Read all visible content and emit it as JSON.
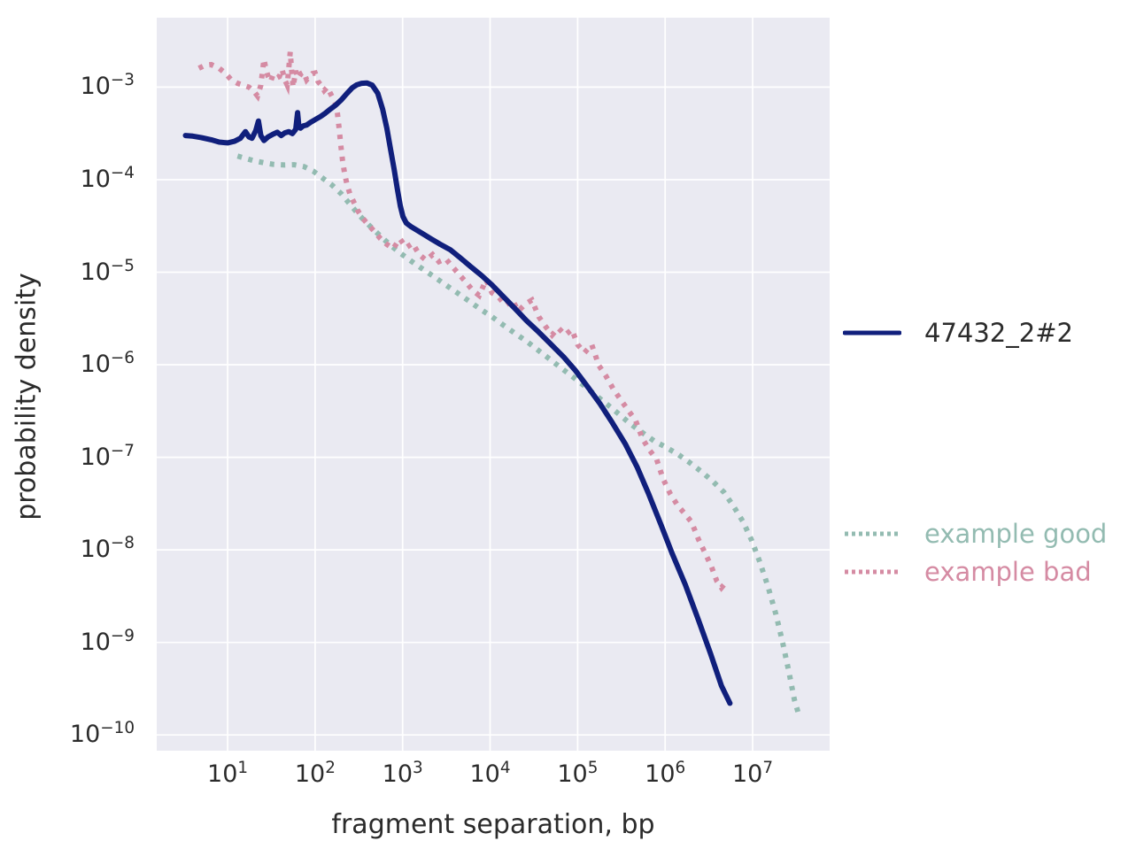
{
  "figure": {
    "background": "#ffffff",
    "plot_background": "#eaeaf2",
    "grid_color": "#ffffff",
    "text_color": "#2b2b2b"
  },
  "chart_data": {
    "type": "line",
    "title": "",
    "xlabel": "fragment separation, bp",
    "ylabel": "probability density",
    "x_scale": "log",
    "y_scale": "log",
    "x_tick_exponents": [
      1,
      2,
      3,
      4,
      5,
      6,
      7
    ],
    "y_tick_exponents": [
      -3,
      -4,
      -5,
      -6,
      -7,
      -8,
      -9,
      -10
    ],
    "x_range_log": [
      0.19,
      7.88
    ],
    "y_range_log": [
      -10.17,
      -2.25
    ],
    "grid": "on",
    "legend_position": "right outside",
    "draw_order": [
      1,
      2,
      0
    ],
    "series": [
      {
        "name": "47432_2#2",
        "color": "#101f7c",
        "label_color": "#2b2b2b",
        "style": "solid",
        "width": 6,
        "points": [
          [
            3.3,
            0.0003
          ],
          [
            4,
            0.000295
          ],
          [
            5,
            0.000285
          ],
          [
            6.5,
            0.00027
          ],
          [
            8,
            0.000255
          ],
          [
            10,
            0.00025
          ],
          [
            12,
            0.00026
          ],
          [
            14,
            0.00028
          ],
          [
            16,
            0.00033
          ],
          [
            17.5,
            0.00029
          ],
          [
            19,
            0.00028
          ],
          [
            21,
            0.00034
          ],
          [
            22.5,
            0.00043
          ],
          [
            24,
            0.0003
          ],
          [
            26,
            0.000265
          ],
          [
            29,
            0.00029
          ],
          [
            33,
            0.00031
          ],
          [
            37,
            0.000325
          ],
          [
            41,
            0.0003
          ],
          [
            45,
            0.00032
          ],
          [
            50,
            0.00033
          ],
          [
            55,
            0.000315
          ],
          [
            60,
            0.00035
          ],
          [
            63,
            0.00053
          ],
          [
            65,
            0.00039
          ],
          [
            68,
            0.00036
          ],
          [
            73,
            0.00038
          ],
          [
            80,
            0.00039
          ],
          [
            90,
            0.00042
          ],
          [
            102,
            0.00045
          ],
          [
            115,
            0.00048
          ],
          [
            130,
            0.00052
          ],
          [
            150,
            0.00058
          ],
          [
            172,
            0.00064
          ],
          [
            200,
            0.00073
          ],
          [
            230,
            0.00085
          ],
          [
            265,
            0.00098
          ],
          [
            300,
            0.00106
          ],
          [
            340,
            0.0011
          ],
          [
            390,
            0.00111
          ],
          [
            450,
            0.00105
          ],
          [
            520,
            0.00086
          ],
          [
            590,
            0.00058
          ],
          [
            660,
            0.00036
          ],
          [
            730,
            0.00021
          ],
          [
            800,
            0.00013
          ],
          [
            870,
            8e-05
          ],
          [
            940,
            5.2e-05
          ],
          [
            1010,
            4e-05
          ],
          [
            1100,
            3.4e-05
          ],
          [
            1250,
            3.1e-05
          ],
          [
            1450,
            2.85e-05
          ],
          [
            1700,
            2.6e-05
          ],
          [
            2100,
            2.3e-05
          ],
          [
            2700,
            2e-05
          ],
          [
            3500,
            1.75e-05
          ],
          [
            4600,
            1.42e-05
          ],
          [
            6000,
            1.15e-05
          ],
          [
            8000,
            9.2e-06
          ],
          [
            10500,
            7.3e-06
          ],
          [
            14000,
            5.5e-06
          ],
          [
            19000,
            4.1e-06
          ],
          [
            26000,
            3e-06
          ],
          [
            36000,
            2.25e-06
          ],
          [
            50000,
            1.65e-06
          ],
          [
            70000,
            1.2e-06
          ],
          [
            95000,
            8.6e-07
          ],
          [
            130000,
            5.8e-07
          ],
          [
            180000,
            3.8e-07
          ],
          [
            250000,
            2.35e-07
          ],
          [
            350000,
            1.4e-07
          ],
          [
            480000,
            7.8e-08
          ],
          [
            650000,
            4e-08
          ],
          [
            900000,
            1.85e-08
          ],
          [
            1200000,
            9.2e-09
          ],
          [
            1700000,
            4.2e-09
          ],
          [
            2400000,
            1.75e-09
          ],
          [
            3300000,
            7.6e-10
          ],
          [
            4400000,
            3.4e-10
          ],
          [
            5500000,
            2.2e-10
          ]
        ]
      },
      {
        "name": "example good",
        "color": "#93bbb1",
        "label_color": "#93bbb1",
        "style": "dotted",
        "width": 6,
        "points": [
          [
            13,
            0.00018
          ],
          [
            16,
            0.00017
          ],
          [
            20,
            0.00016
          ],
          [
            26,
            0.000152
          ],
          [
            34,
            0.000146
          ],
          [
            45,
            0.000144
          ],
          [
            58,
            0.000145
          ],
          [
            75,
            0.000138
          ],
          [
            95,
            0.000124
          ],
          [
            120,
            0.000105
          ],
          [
            155,
            8.8e-05
          ],
          [
            200,
            7e-05
          ],
          [
            255,
            5.3e-05
          ],
          [
            330,
            4e-05
          ],
          [
            430,
            3.1e-05
          ],
          [
            560,
            2.45e-05
          ],
          [
            730,
            1.95e-05
          ],
          [
            950,
            1.6e-05
          ],
          [
            1250,
            1.32e-05
          ],
          [
            1700,
            1.08e-05
          ],
          [
            2300,
            8.9e-06
          ],
          [
            3100,
            7.3e-06
          ],
          [
            4200,
            6e-06
          ],
          [
            5700,
            4.9e-06
          ],
          [
            7700,
            4e-06
          ],
          [
            10500,
            3.3e-06
          ],
          [
            14000,
            2.7e-06
          ],
          [
            19000,
            2.2e-06
          ],
          [
            26000,
            1.8e-06
          ],
          [
            35000,
            1.45e-06
          ],
          [
            48000,
            1.15e-06
          ],
          [
            65000,
            9.2e-07
          ],
          [
            88000,
            7.4e-07
          ],
          [
            120000,
            5.9e-07
          ],
          [
            160000,
            4.7e-07
          ],
          [
            220000,
            3.7e-07
          ],
          [
            300000,
            2.9e-07
          ],
          [
            400000,
            2.3e-07
          ],
          [
            550000,
            1.85e-07
          ],
          [
            750000,
            1.5e-07
          ],
          [
            1000000,
            1.3e-07
          ],
          [
            1400000,
            1.08e-07
          ],
          [
            1900000,
            8.8e-08
          ],
          [
            2600000,
            7e-08
          ],
          [
            3500000,
            5.5e-08
          ],
          [
            4700000,
            4.2e-08
          ],
          [
            6000000,
            3e-08
          ],
          [
            7800000,
            2e-08
          ],
          [
            9800000,
            1.25e-08
          ],
          [
            12000000,
            7.5e-09
          ],
          [
            15000000,
            4e-09
          ],
          [
            18500000,
            2e-09
          ],
          [
            22000000,
            1e-09
          ],
          [
            26000000,
            4.8e-10
          ],
          [
            30000000,
            2.4e-10
          ],
          [
            34000000,
            1.6e-10
          ]
        ]
      },
      {
        "name": "example bad",
        "color": "#d58ba3",
        "label_color": "#d58ba3",
        "style": "dotted",
        "width": 6,
        "points": [
          [
            4.7,
            0.0016
          ],
          [
            5.5,
            0.00172
          ],
          [
            6.5,
            0.00175
          ],
          [
            8,
            0.0016
          ],
          [
            9.5,
            0.0014
          ],
          [
            11,
            0.0012
          ],
          [
            13,
            0.0011
          ],
          [
            15,
            0.00105
          ],
          [
            17.5,
            0.001
          ],
          [
            20,
            0.0009
          ],
          [
            22,
            0.0008
          ],
          [
            24,
            0.00105
          ],
          [
            26,
            0.002
          ],
          [
            27.5,
            0.00155
          ],
          [
            29,
            0.0013
          ],
          [
            31,
            0.00115
          ],
          [
            33,
            0.00135
          ],
          [
            36,
            0.00125
          ],
          [
            39,
            0.0013
          ],
          [
            42,
            0.00155
          ],
          [
            45,
            0.0012
          ],
          [
            48,
            0.00105
          ],
          [
            52,
            0.0024
          ],
          [
            54,
            0.0015
          ],
          [
            56,
            0.001
          ],
          [
            60,
            0.0015
          ],
          [
            64,
            0.00125
          ],
          [
            69,
            0.0014
          ],
          [
            74,
            0.00145
          ],
          [
            80,
            0.0012
          ],
          [
            86,
            0.0013
          ],
          [
            93,
            0.0014
          ],
          [
            100,
            0.00142
          ],
          [
            108,
            0.00115
          ],
          [
            117,
            0.00105
          ],
          [
            127,
            0.00092
          ],
          [
            138,
            0.001
          ],
          [
            150,
            0.00085
          ],
          [
            162,
            0.00074
          ],
          [
            172,
            0.00066
          ],
          [
            180,
            0.00052
          ],
          [
            188,
            0.00036
          ],
          [
            196,
            0.00024
          ],
          [
            206,
            0.00016
          ],
          [
            218,
            0.000115
          ],
          [
            232,
            8.8e-05
          ],
          [
            250,
            7e-05
          ],
          [
            275,
            5.8e-05
          ],
          [
            305,
            4.7e-05
          ],
          [
            345,
            3.9e-05
          ],
          [
            400,
            3.3e-05
          ],
          [
            470,
            2.8e-05
          ],
          [
            560,
            2.3e-05
          ],
          [
            660,
            2e-05
          ],
          [
            780,
            1.8e-05
          ],
          [
            930,
            2.3e-05
          ],
          [
            1100,
            1.85e-05
          ],
          [
            1300,
            2.05e-05
          ],
          [
            1550,
            1.55e-05
          ],
          [
            1850,
            1.35e-05
          ],
          [
            2200,
            1.55e-05
          ],
          [
            2600,
            1.3e-05
          ],
          [
            3100,
            1.4e-05
          ],
          [
            3700,
            1.15e-05
          ],
          [
            4400,
            9.5e-06
          ],
          [
            5300,
            7.8e-06
          ],
          [
            6300,
            6.4e-06
          ],
          [
            7500,
            5.6e-06
          ],
          [
            9000,
            8.3e-06
          ],
          [
            10500,
            6e-06
          ],
          [
            12500,
            5.4e-06
          ],
          [
            15000,
            4.4e-06
          ],
          [
            18000,
            5e-06
          ],
          [
            21000,
            3.8e-06
          ],
          [
            25000,
            4.5e-06
          ],
          [
            30000,
            5e-06
          ],
          [
            36000,
            3.3e-06
          ],
          [
            43000,
            2.6e-06
          ],
          [
            51000,
            2.1e-06
          ],
          [
            60000,
            2.5e-06
          ],
          [
            72000,
            2.1e-06
          ],
          [
            86000,
            2.4e-06
          ],
          [
            100000,
            1.65e-06
          ],
          [
            120000,
            1.35e-06
          ],
          [
            145000,
            1.65e-06
          ],
          [
            175000,
            9.8e-07
          ],
          [
            210000,
            7.6e-07
          ],
          [
            255000,
            5.5e-07
          ],
          [
            310000,
            4.2e-07
          ],
          [
            380000,
            3.2e-07
          ],
          [
            460000,
            2.5e-07
          ],
          [
            550000,
            1.6e-07
          ],
          [
            660000,
            1.2e-07
          ],
          [
            800000,
            9.5e-08
          ],
          [
            950000,
            5.8e-08
          ],
          [
            1150000,
            4e-08
          ],
          [
            1400000,
            3e-08
          ],
          [
            1650000,
            2.5e-08
          ],
          [
            2000000,
            2e-08
          ],
          [
            2400000,
            1.3e-08
          ],
          [
            2900000,
            9e-09
          ],
          [
            3400000,
            6.5e-09
          ],
          [
            3900000,
            4.6e-09
          ],
          [
            4400000,
            3.9e-09
          ],
          [
            4900000,
            4.4e-09
          ]
        ]
      }
    ]
  },
  "legend": {
    "items": [
      {
        "label": "47432_2#2"
      },
      {
        "label": "example good"
      },
      {
        "label": "example bad"
      }
    ]
  }
}
